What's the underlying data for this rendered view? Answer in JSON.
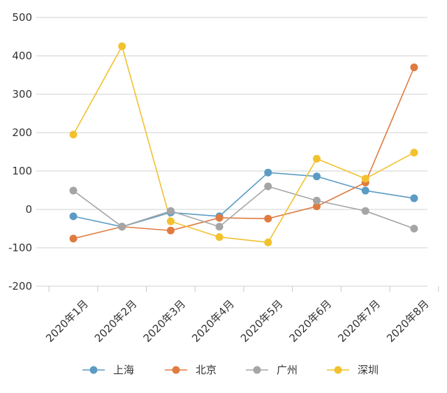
{
  "chart_data": {
    "type": "line",
    "title": "",
    "xlabel": "",
    "ylabel": "",
    "ylim": [
      -200,
      500
    ],
    "yticks": [
      -200,
      -100,
      0,
      100,
      200,
      300,
      400,
      500
    ],
    "ytick_labels": [
      "-200",
      "-100",
      "0",
      "100",
      "200",
      "300",
      "400",
      "500"
    ],
    "categories": [
      "2020年1月",
      "2020年2月",
      "2020年3月",
      "2020年4月",
      "2020年5月",
      "2020年6月",
      "2020年7月",
      "2020年8月"
    ],
    "grid": true,
    "legend_position": "bottom",
    "series": [
      {
        "name": "上海",
        "color": "#5b9bc4",
        "values": [
          -18,
          -45,
          -8,
          -18,
          96,
          86,
          49,
          29
        ]
      },
      {
        "name": "北京",
        "color": "#e07b3f",
        "values": [
          -76,
          -45,
          -55,
          -22,
          -24,
          8,
          70,
          370
        ]
      },
      {
        "name": "广州",
        "color": "#a5a5a5",
        "values": [
          49,
          -45,
          -4,
          -45,
          60,
          23,
          -4,
          -50
        ]
      },
      {
        "name": "深圳",
        "color": "#f2c12e",
        "values": [
          195,
          425,
          -31,
          -72,
          -86,
          132,
          80,
          148
        ]
      }
    ]
  }
}
